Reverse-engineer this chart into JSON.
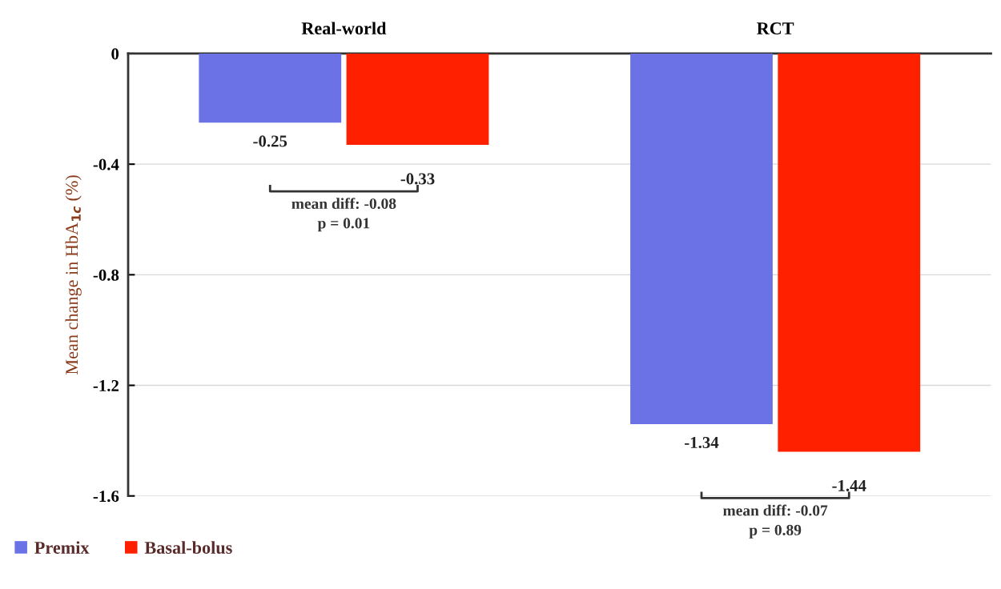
{
  "chart_data": {
    "type": "bar",
    "categories": [
      "Real-world",
      "RCT"
    ],
    "series": [
      {
        "name": "Premix",
        "color": "#6b72e6",
        "values": [
          -0.25,
          -1.34
        ]
      },
      {
        "name": "Basal-bolus",
        "color": "#ff2000",
        "values": [
          -0.33,
          -1.44
        ]
      }
    ],
    "ylabel": "Mean change in HbA$_{1c}$ (%)",
    "ylim": [
      -1.6,
      0
    ],
    "yticks": [
      {
        "value": 0,
        "label": "0"
      },
      {
        "value": -0.4,
        "label": "-0.4"
      },
      {
        "value": -0.8,
        "label": "-0.8"
      },
      {
        "value": -1.2,
        "label": "-1.2"
      },
      {
        "value": -1.6,
        "label": "-1.6"
      }
    ],
    "grid": "y",
    "legend": "bottom left",
    "data_labels": true,
    "annotations": [
      "mean diff: -0.08\np = 0.01",
      "mean diff: -0.07\np = 0.89"
    ]
  }
}
